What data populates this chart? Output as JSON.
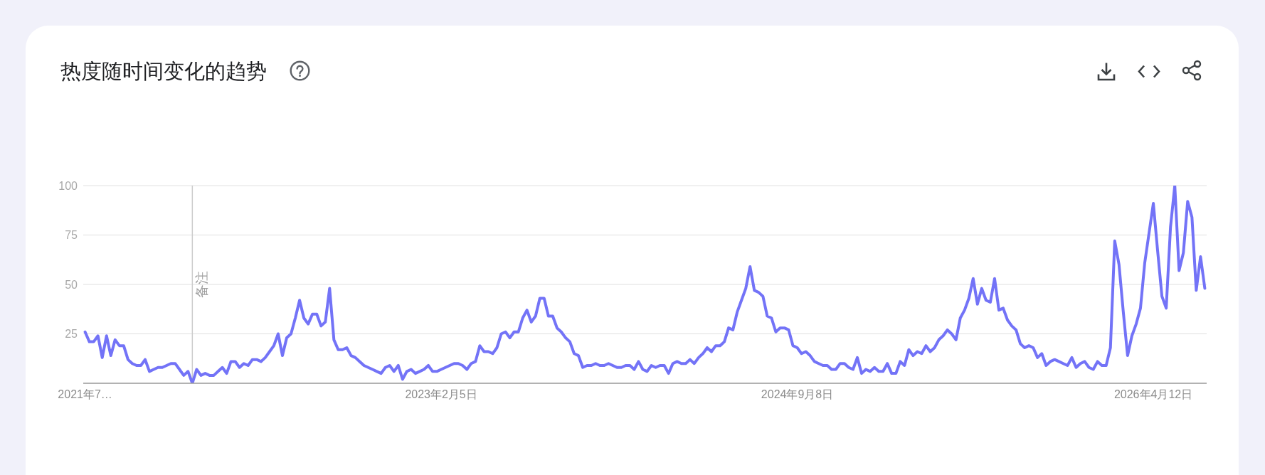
{
  "chart_data": {
    "type": "line",
    "title": "热度随时间变化的趋势",
    "x": [
      "2021-07-04",
      "2021-07-11",
      "2021-07-18",
      "2021-07-25",
      "2021-08-01",
      "2021-08-08",
      "2021-08-15",
      "2021-08-22",
      "2021-08-29",
      "2021-09-05",
      "2021-09-12",
      "2021-09-19",
      "2021-09-26",
      "2021-10-03",
      "2021-10-10",
      "2021-10-17",
      "2021-10-24",
      "2021-10-31",
      "2021-11-07",
      "2021-11-14",
      "2021-11-21",
      "2021-11-28",
      "2021-12-05",
      "2021-12-12",
      "2021-12-19",
      "2021-12-26",
      "2022-01-02",
      "2022-01-09",
      "2022-01-16",
      "2022-01-23",
      "2022-01-30",
      "2022-02-06",
      "2022-02-13",
      "2022-02-20",
      "2022-02-27",
      "2022-03-06",
      "2022-03-13",
      "2022-03-20",
      "2022-03-27",
      "2022-04-03",
      "2022-04-10",
      "2022-04-17",
      "2022-04-24",
      "2022-05-01",
      "2022-05-08",
      "2022-05-15",
      "2022-05-22",
      "2022-05-29",
      "2022-06-05",
      "2022-06-12",
      "2022-06-19",
      "2022-06-26",
      "2022-07-03",
      "2022-07-10",
      "2022-07-17",
      "2022-07-24",
      "2022-07-31",
      "2022-08-07",
      "2022-08-14",
      "2022-08-21",
      "2022-08-28",
      "2022-09-04",
      "2022-09-11",
      "2022-09-18",
      "2022-09-25",
      "2022-10-02",
      "2022-10-09",
      "2022-10-16",
      "2022-10-23",
      "2022-10-30",
      "2022-11-06",
      "2022-11-13",
      "2022-11-20",
      "2022-11-27",
      "2022-12-04",
      "2022-12-11",
      "2022-12-18",
      "2022-12-25",
      "2023-01-01",
      "2023-01-08",
      "2023-01-15",
      "2023-01-22",
      "2023-01-29",
      "2023-02-05",
      "2023-02-12",
      "2023-02-19",
      "2023-02-26",
      "2023-03-05",
      "2023-03-12",
      "2023-03-19",
      "2023-03-26",
      "2023-04-02",
      "2023-04-09",
      "2023-04-16",
      "2023-04-23",
      "2023-04-30",
      "2023-05-07",
      "2023-05-14",
      "2023-05-21",
      "2023-05-28",
      "2023-06-04",
      "2023-06-11",
      "2023-06-18",
      "2023-06-25",
      "2023-07-02",
      "2023-07-09",
      "2023-07-16",
      "2023-07-23",
      "2023-07-30",
      "2023-08-06",
      "2023-08-13",
      "2023-08-20",
      "2023-08-27",
      "2023-09-03",
      "2023-09-10",
      "2023-09-17",
      "2023-09-24",
      "2023-10-01",
      "2023-10-08",
      "2023-10-15",
      "2023-10-22",
      "2023-10-29",
      "2023-11-05",
      "2023-11-12",
      "2023-11-19",
      "2023-11-26",
      "2023-12-03",
      "2023-12-10",
      "2023-12-17",
      "2023-12-24",
      "2023-12-31",
      "2024-01-07",
      "2024-01-14",
      "2024-01-21",
      "2024-01-28",
      "2024-02-04",
      "2024-02-11",
      "2024-02-18",
      "2024-02-25",
      "2024-03-03",
      "2024-03-10",
      "2024-03-17",
      "2024-03-24",
      "2024-03-31",
      "2024-04-07",
      "2024-04-14",
      "2024-04-21",
      "2024-04-28",
      "2024-05-05",
      "2024-05-12",
      "2024-05-19",
      "2024-05-26",
      "2024-06-02",
      "2024-06-09",
      "2024-06-16",
      "2024-06-23",
      "2024-06-30",
      "2024-07-07",
      "2024-07-14",
      "2024-07-21",
      "2024-07-28",
      "2024-08-04",
      "2024-08-11",
      "2024-08-18",
      "2024-08-25",
      "2024-09-01",
      "2024-09-08",
      "2024-09-15",
      "2024-09-22",
      "2024-09-29",
      "2024-10-06",
      "2024-10-13",
      "2024-10-20",
      "2024-10-27",
      "2024-11-03",
      "2024-11-10",
      "2024-11-17",
      "2024-11-24",
      "2024-12-01",
      "2024-12-08",
      "2024-12-15",
      "2024-12-22",
      "2024-12-29",
      "2025-01-05",
      "2025-01-12",
      "2025-01-19",
      "2025-01-26",
      "2025-02-02",
      "2025-02-09",
      "2025-02-16",
      "2025-02-23",
      "2025-03-02",
      "2025-03-09",
      "2025-03-16",
      "2025-03-23",
      "2025-03-30",
      "2025-04-06",
      "2025-04-13",
      "2025-04-20",
      "2025-04-27",
      "2025-05-04",
      "2025-05-11",
      "2025-05-18",
      "2025-05-25",
      "2025-06-01",
      "2025-06-08",
      "2025-06-15",
      "2025-06-22",
      "2025-06-29",
      "2025-07-06",
      "2025-07-13",
      "2025-07-20",
      "2025-07-27",
      "2025-08-03",
      "2025-08-10",
      "2025-08-17",
      "2025-08-24",
      "2025-08-31",
      "2025-09-07",
      "2025-09-14",
      "2025-09-21",
      "2025-09-28",
      "2025-10-05",
      "2025-10-12",
      "2025-10-19",
      "2025-10-26",
      "2025-11-02",
      "2025-11-09",
      "2025-11-16",
      "2025-11-23",
      "2025-11-30",
      "2025-12-07",
      "2025-12-14",
      "2025-12-21",
      "2025-12-28",
      "2026-01-04",
      "2026-01-11",
      "2026-01-18",
      "2026-01-25",
      "2026-02-01",
      "2026-02-08",
      "2026-02-15",
      "2026-02-22",
      "2026-03-01",
      "2026-03-08",
      "2026-03-15",
      "2026-03-22",
      "2026-03-29",
      "2026-04-05",
      "2026-04-12",
      "2026-04-19",
      "2026-04-26",
      "2026-05-03",
      "2026-05-10",
      "2026-05-17",
      "2026-05-24",
      "2026-05-31",
      "2026-06-07",
      "2026-06-14",
      "2026-06-21",
      "2026-06-28",
      "2026-07-05"
    ],
    "values": [
      26,
      21,
      21,
      24,
      13,
      24,
      14,
      22,
      19,
      19,
      12,
      10,
      9,
      9,
      12,
      6,
      7,
      8,
      8,
      9,
      10,
      10,
      7,
      4,
      6,
      0,
      7,
      4,
      5,
      4,
      4,
      6,
      8,
      5,
      11,
      11,
      8,
      10,
      9,
      12,
      12,
      11,
      13,
      16,
      19,
      25,
      14,
      23,
      25,
      33,
      42,
      33,
      30,
      35,
      35,
      29,
      31,
      48,
      22,
      17,
      17,
      18,
      14,
      13,
      11,
      9,
      8,
      7,
      6,
      5,
      8,
      9,
      6,
      9,
      2,
      6,
      7,
      5,
      6,
      7,
      9,
      6,
      6,
      7,
      8,
      9,
      10,
      10,
      9,
      7,
      10,
      11,
      19,
      16,
      16,
      15,
      18,
      25,
      26,
      23,
      26,
      26,
      33,
      37,
      31,
      34,
      43,
      43,
      34,
      34,
      28,
      26,
      23,
      21,
      15,
      14,
      8,
      9,
      9,
      10,
      9,
      9,
      10,
      9,
      8,
      8,
      9,
      9,
      7,
      11,
      7,
      6,
      9,
      8,
      9,
      9,
      5,
      10,
      11,
      10,
      10,
      12,
      10,
      13,
      15,
      18,
      16,
      19,
      19,
      21,
      28,
      27,
      36,
      42,
      48,
      59,
      47,
      46,
      44,
      34,
      33,
      26,
      28,
      28,
      27,
      19,
      18,
      15,
      16,
      14,
      11,
      10,
      9,
      9,
      7,
      7,
      10,
      10,
      8,
      7,
      13,
      5,
      7,
      6,
      8,
      6,
      6,
      10,
      5,
      5,
      11,
      9,
      17,
      14,
      16,
      15,
      19,
      16,
      18,
      22,
      24,
      27,
      25,
      22,
      33,
      37,
      43,
      53,
      40,
      48,
      42,
      41,
      53,
      37,
      38,
      32,
      29,
      27,
      20,
      18,
      19,
      18,
      13,
      15,
      9,
      11,
      12,
      11,
      10,
      9,
      13,
      8,
      10,
      11,
      8,
      7,
      11,
      9,
      9,
      18,
      72,
      60,
      36,
      14,
      24,
      30,
      38,
      61,
      76,
      91,
      67,
      44,
      38,
      79,
      100,
      57,
      66,
      92,
      84,
      47,
      64,
      48
    ],
    "color": "#7373f7",
    "xlim": [
      "2021-07-01",
      "2026-07-08"
    ],
    "xticks": [
      {
        "value": "2021-07-04",
        "label": "2021年7…"
      },
      {
        "value": "2023-02-05",
        "label": "2023年2月5日"
      },
      {
        "value": "2024-09-08",
        "label": "2024年9月8日"
      },
      {
        "value": "2026-04-12",
        "label": "2026年4月12日"
      }
    ],
    "ylim": [
      0,
      100
    ],
    "yticks": [
      25,
      50,
      75,
      100
    ],
    "grid": "y",
    "line_style": "solid",
    "ref_lines": [
      {
        "axis": "x",
        "value": "2021-12-26",
        "label": "备注",
        "color": "#cccccc"
      }
    ]
  }
}
